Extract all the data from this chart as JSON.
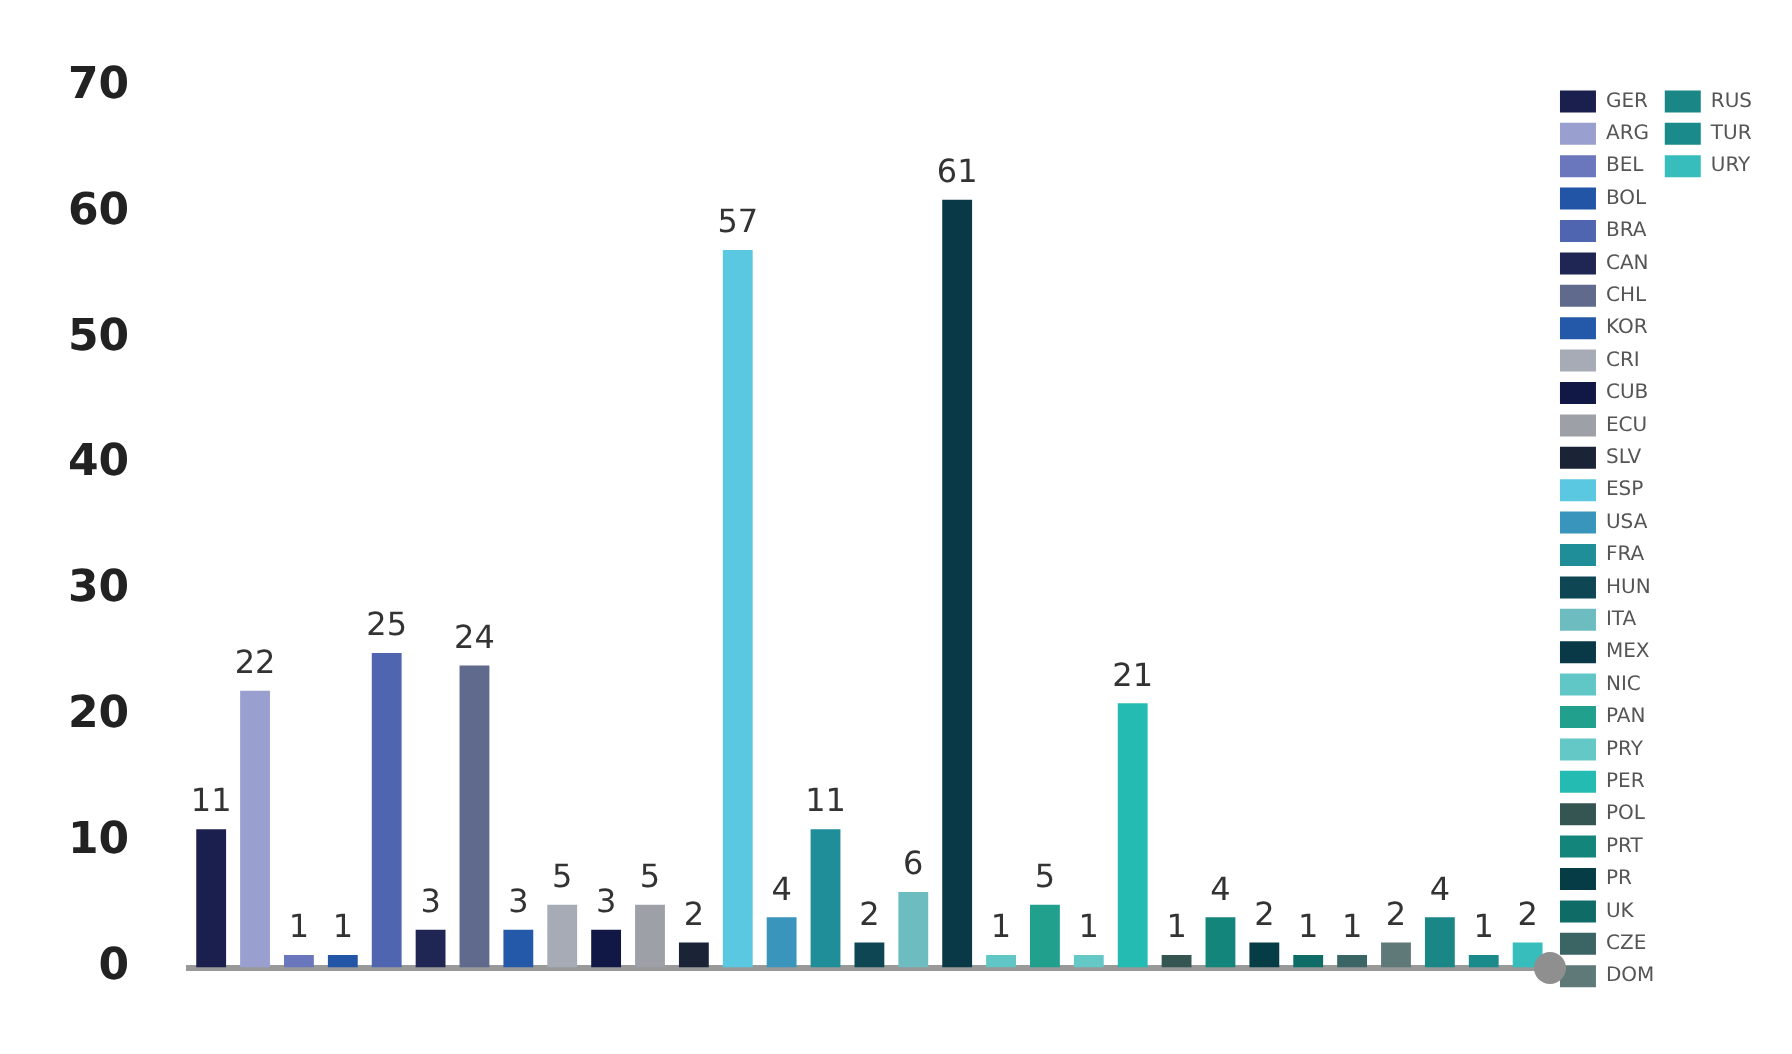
{
  "chart_data": {
    "type": "bar",
    "categories": [
      null,
      null,
      null,
      null,
      null,
      null,
      null,
      null,
      null,
      null,
      null,
      null,
      null,
      null,
      null,
      null,
      null,
      null,
      null,
      null,
      null,
      null,
      null,
      null,
      null,
      null,
      null,
      null,
      null,
      null,
      null
    ],
    "ylim": [
      0,
      70
    ],
    "yticks": [
      0,
      10,
      20,
      30,
      40,
      50,
      60,
      70
    ],
    "grid": false,
    "legend": "right",
    "data_labels": true,
    "series": [
      {
        "name": "GER",
        "color": "#1b1f4d",
        "values": [
          11,
          null,
          null,
          null,
          null,
          null,
          null,
          null,
          null,
          null,
          null,
          null,
          null,
          null,
          null,
          null,
          null,
          null,
          null,
          null,
          null,
          null,
          null,
          null,
          null,
          null,
          null,
          null,
          null,
          null,
          null
        ]
      },
      {
        "name": "ARG",
        "color": "#99a0d0",
        "values": [
          null,
          22,
          null,
          null,
          null,
          null,
          null,
          null,
          null,
          null,
          null,
          null,
          null,
          null,
          null,
          null,
          null,
          null,
          null,
          null,
          null,
          null,
          null,
          null,
          null,
          null,
          null,
          null,
          null,
          null,
          null
        ]
      },
      {
        "name": "BEL",
        "color": "#6a77bd",
        "values": [
          null,
          null,
          1,
          null,
          null,
          null,
          null,
          null,
          null,
          null,
          null,
          null,
          null,
          null,
          null,
          null,
          null,
          null,
          null,
          null,
          null,
          null,
          null,
          null,
          null,
          null,
          null,
          null,
          null,
          null,
          null
        ]
      },
      {
        "name": "BOL",
        "color": "#2355a6",
        "values": [
          null,
          null,
          null,
          1,
          null,
          null,
          null,
          null,
          null,
          null,
          null,
          null,
          null,
          null,
          null,
          null,
          null,
          null,
          null,
          null,
          null,
          null,
          null,
          null,
          null,
          null,
          null,
          null,
          null,
          null,
          null
        ]
      },
      {
        "name": "BRA",
        "color": "#4f65b0",
        "values": [
          null,
          null,
          null,
          null,
          25,
          null,
          null,
          null,
          null,
          null,
          null,
          null,
          null,
          null,
          null,
          null,
          null,
          null,
          null,
          null,
          null,
          null,
          null,
          null,
          null,
          null,
          null,
          null,
          null,
          null,
          null
        ]
      },
      {
        "name": "CAN",
        "color": "#1f2654",
        "values": [
          null,
          null,
          null,
          null,
          null,
          3,
          null,
          null,
          null,
          null,
          null,
          null,
          null,
          null,
          null,
          null,
          null,
          null,
          null,
          null,
          null,
          null,
          null,
          null,
          null,
          null,
          null,
          null,
          null,
          null,
          null
        ]
      },
      {
        "name": "CHL",
        "color": "#5f6a8c",
        "values": [
          null,
          null,
          null,
          null,
          null,
          null,
          24,
          null,
          null,
          null,
          null,
          null,
          null,
          null,
          null,
          null,
          null,
          null,
          null,
          null,
          null,
          null,
          null,
          null,
          null,
          null,
          null,
          null,
          null,
          null,
          null
        ]
      },
      {
        "name": "KOR",
        "color": "#2359a8",
        "values": [
          null,
          null,
          null,
          null,
          null,
          null,
          null,
          3,
          null,
          null,
          null,
          null,
          null,
          null,
          null,
          null,
          null,
          null,
          null,
          null,
          null,
          null,
          null,
          null,
          null,
          null,
          null,
          null,
          null,
          null,
          null
        ]
      },
      {
        "name": "CRI",
        "color": "#a6abb6",
        "values": [
          null,
          null,
          null,
          null,
          null,
          null,
          null,
          null,
          5,
          null,
          null,
          null,
          null,
          null,
          null,
          null,
          null,
          null,
          null,
          null,
          null,
          null,
          null,
          null,
          null,
          null,
          null,
          null,
          null,
          null,
          null
        ]
      },
      {
        "name": "CUB",
        "color": "#121845",
        "values": [
          null,
          null,
          null,
          null,
          null,
          null,
          null,
          null,
          null,
          3,
          null,
          null,
          null,
          null,
          null,
          null,
          null,
          null,
          null,
          null,
          null,
          null,
          null,
          null,
          null,
          null,
          null,
          null,
          null,
          null,
          null
        ]
      },
      {
        "name": "ECU",
        "color": "#9ea0a8",
        "values": [
          null,
          null,
          null,
          null,
          null,
          null,
          null,
          null,
          null,
          null,
          5,
          null,
          null,
          null,
          null,
          null,
          null,
          null,
          null,
          null,
          null,
          null,
          null,
          null,
          null,
          null,
          null,
          null,
          null,
          null,
          null
        ]
      },
      {
        "name": "SLV",
        "color": "#1b2337",
        "values": [
          null,
          null,
          null,
          null,
          null,
          null,
          null,
          null,
          null,
          null,
          null,
          2,
          null,
          null,
          null,
          null,
          null,
          null,
          null,
          null,
          null,
          null,
          null,
          null,
          null,
          null,
          null,
          null,
          null,
          null,
          null
        ]
      },
      {
        "name": "ESP",
        "color": "#5bc8e2",
        "values": [
          null,
          null,
          null,
          null,
          null,
          null,
          null,
          null,
          null,
          null,
          null,
          null,
          57,
          null,
          null,
          null,
          null,
          null,
          null,
          null,
          null,
          null,
          null,
          null,
          null,
          null,
          null,
          null,
          null,
          null,
          null
        ]
      },
      {
        "name": "USA",
        "color": "#3a95bd",
        "values": [
          null,
          null,
          null,
          null,
          null,
          null,
          null,
          null,
          null,
          null,
          null,
          null,
          null,
          4,
          null,
          null,
          null,
          null,
          null,
          null,
          null,
          null,
          null,
          null,
          null,
          null,
          null,
          null,
          null,
          null,
          null
        ]
      },
      {
        "name": "FRA",
        "color": "#208e98",
        "values": [
          null,
          null,
          null,
          null,
          null,
          null,
          null,
          null,
          null,
          null,
          null,
          null,
          null,
          null,
          11,
          null,
          null,
          null,
          null,
          null,
          null,
          null,
          null,
          null,
          null,
          null,
          null,
          null,
          null,
          null,
          null
        ]
      },
      {
        "name": "HUN",
        "color": "#0e4654",
        "values": [
          null,
          null,
          null,
          null,
          null,
          null,
          null,
          null,
          null,
          null,
          null,
          null,
          null,
          null,
          null,
          2,
          null,
          null,
          null,
          null,
          null,
          null,
          null,
          null,
          null,
          null,
          null,
          null,
          null,
          null,
          null
        ]
      },
      {
        "name": "ITA",
        "color": "#6dbdc0",
        "values": [
          null,
          null,
          null,
          null,
          null,
          null,
          null,
          null,
          null,
          null,
          null,
          null,
          null,
          null,
          null,
          null,
          6,
          null,
          null,
          null,
          null,
          null,
          null,
          null,
          null,
          null,
          null,
          null,
          null,
          null,
          null
        ]
      },
      {
        "name": "MEX",
        "color": "#093847",
        "values": [
          null,
          null,
          null,
          null,
          null,
          null,
          null,
          null,
          null,
          null,
          null,
          null,
          null,
          null,
          null,
          null,
          null,
          61,
          null,
          null,
          null,
          null,
          null,
          null,
          null,
          null,
          null,
          null,
          null,
          null,
          null
        ]
      },
      {
        "name": "NIC",
        "color": "#60c6c6",
        "values": [
          null,
          null,
          null,
          null,
          null,
          null,
          null,
          null,
          null,
          null,
          null,
          null,
          null,
          null,
          null,
          null,
          null,
          null,
          1,
          null,
          null,
          null,
          null,
          null,
          null,
          null,
          null,
          null,
          null,
          null,
          null
        ]
      },
      {
        "name": "PAN",
        "color": "#21a08e",
        "values": [
          null,
          null,
          null,
          null,
          null,
          null,
          null,
          null,
          null,
          null,
          null,
          null,
          null,
          null,
          null,
          null,
          null,
          null,
          null,
          5,
          null,
          null,
          null,
          null,
          null,
          null,
          null,
          null,
          null,
          null,
          null
        ]
      },
      {
        "name": "PRY",
        "color": "#64c8c6",
        "values": [
          null,
          null,
          null,
          null,
          null,
          null,
          null,
          null,
          null,
          null,
          null,
          null,
          null,
          null,
          null,
          null,
          null,
          null,
          null,
          null,
          1,
          null,
          null,
          null,
          null,
          null,
          null,
          null,
          null,
          null,
          null
        ]
      },
      {
        "name": "PER",
        "color": "#24bbb3",
        "values": [
          null,
          null,
          null,
          null,
          null,
          null,
          null,
          null,
          null,
          null,
          null,
          null,
          null,
          null,
          null,
          null,
          null,
          null,
          null,
          null,
          null,
          21,
          null,
          null,
          null,
          null,
          null,
          null,
          null,
          null,
          null
        ]
      },
      {
        "name": "POL",
        "color": "#355553",
        "values": [
          null,
          null,
          null,
          null,
          null,
          null,
          null,
          null,
          null,
          null,
          null,
          null,
          null,
          null,
          null,
          null,
          null,
          null,
          null,
          null,
          null,
          null,
          1,
          null,
          null,
          null,
          null,
          null,
          null,
          null,
          null
        ]
      },
      {
        "name": "PRT",
        "color": "#13857a",
        "values": [
          null,
          null,
          null,
          null,
          null,
          null,
          null,
          null,
          null,
          null,
          null,
          null,
          null,
          null,
          null,
          null,
          null,
          null,
          null,
          null,
          null,
          null,
          null,
          4,
          null,
          null,
          null,
          null,
          null,
          null,
          null
        ]
      },
      {
        "name": "PR",
        "color": "#063c45",
        "values": [
          null,
          null,
          null,
          null,
          null,
          null,
          null,
          null,
          null,
          null,
          null,
          null,
          null,
          null,
          null,
          null,
          null,
          null,
          null,
          null,
          null,
          null,
          null,
          null,
          2,
          null,
          null,
          null,
          null,
          null,
          null
        ]
      },
      {
        "name": "UK",
        "color": "#0e6b66",
        "values": [
          null,
          null,
          null,
          null,
          null,
          null,
          null,
          null,
          null,
          null,
          null,
          null,
          null,
          null,
          null,
          null,
          null,
          null,
          null,
          null,
          null,
          null,
          null,
          null,
          null,
          1,
          null,
          null,
          null,
          null,
          null
        ]
      },
      {
        "name": "CZE",
        "color": "#3a6564",
        "values": [
          null,
          null,
          null,
          null,
          null,
          null,
          null,
          null,
          null,
          null,
          null,
          null,
          null,
          null,
          null,
          null,
          null,
          null,
          null,
          null,
          null,
          null,
          null,
          null,
          null,
          null,
          1,
          null,
          null,
          null,
          null
        ]
      },
      {
        "name": "DOM",
        "color": "#5f7979",
        "values": [
          null,
          null,
          null,
          null,
          null,
          null,
          null,
          null,
          null,
          null,
          null,
          null,
          null,
          null,
          null,
          null,
          null,
          null,
          null,
          null,
          null,
          null,
          null,
          null,
          null,
          null,
          null,
          2,
          null,
          null,
          null
        ]
      },
      {
        "name": "RUS",
        "color": "#1a8786",
        "values": [
          null,
          null,
          null,
          null,
          null,
          null,
          null,
          null,
          null,
          null,
          null,
          null,
          null,
          null,
          null,
          null,
          null,
          null,
          null,
          null,
          null,
          null,
          null,
          null,
          null,
          null,
          null,
          null,
          4,
          null,
          null
        ]
      },
      {
        "name": "TUR",
        "color": "#1b8a8a",
        "values": [
          null,
          null,
          null,
          null,
          null,
          null,
          null,
          null,
          null,
          null,
          null,
          null,
          null,
          null,
          null,
          null,
          null,
          null,
          null,
          null,
          null,
          null,
          null,
          null,
          null,
          null,
          null,
          null,
          null,
          1,
          null
        ]
      },
      {
        "name": "URY",
        "color": "#38bdbd",
        "values": [
          null,
          null,
          null,
          null,
          null,
          null,
          null,
          null,
          null,
          null,
          null,
          null,
          null,
          null,
          null,
          null,
          null,
          null,
          null,
          null,
          null,
          null,
          null,
          null,
          null,
          null,
          null,
          null,
          null,
          null,
          2
        ]
      }
    ]
  }
}
